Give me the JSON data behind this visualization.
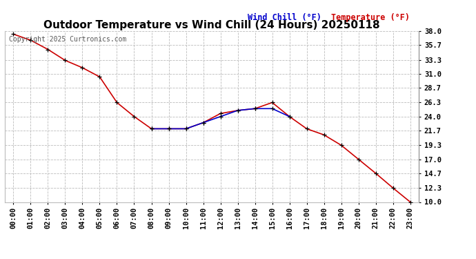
{
  "title": "Outdoor Temperature vs Wind Chill (24 Hours) 20250118",
  "copyright": "Copyright 2025 Curtronics.com",
  "legend_windchill": "Wind Chill (°F)",
  "legend_temp": "Temperature (°F)",
  "hours": [
    0,
    1,
    2,
    3,
    4,
    5,
    6,
    7,
    8,
    9,
    10,
    11,
    12,
    13,
    14,
    15,
    16,
    17,
    18,
    19,
    20,
    21,
    22,
    23
  ],
  "temperature": [
    37.5,
    36.5,
    35.0,
    33.2,
    32.0,
    30.5,
    26.3,
    24.0,
    22.0,
    22.0,
    22.0,
    23.0,
    24.5,
    25.0,
    25.3,
    26.3,
    24.0,
    22.0,
    21.0,
    19.3,
    17.0,
    14.7,
    12.3,
    10.0
  ],
  "windchill": [
    null,
    null,
    null,
    null,
    null,
    null,
    null,
    null,
    22.0,
    22.0,
    22.0,
    23.0,
    24.0,
    25.0,
    25.3,
    25.3,
    24.0,
    null,
    null,
    null,
    null,
    null,
    null,
    null
  ],
  "ylim_min": 10.0,
  "ylim_max": 38.0,
  "yticks": [
    10.0,
    12.3,
    14.7,
    17.0,
    19.3,
    21.7,
    24.0,
    26.3,
    28.7,
    31.0,
    33.3,
    35.7,
    38.0
  ],
  "temp_color": "#cc0000",
  "windchill_color": "#0000cc",
  "marker_color": "#000000",
  "background_color": "#ffffff",
  "grid_color": "#bbbbbb",
  "title_fontsize": 11,
  "tick_fontsize": 7.5,
  "legend_fontsize": 8.5,
  "copyright_fontsize": 7
}
